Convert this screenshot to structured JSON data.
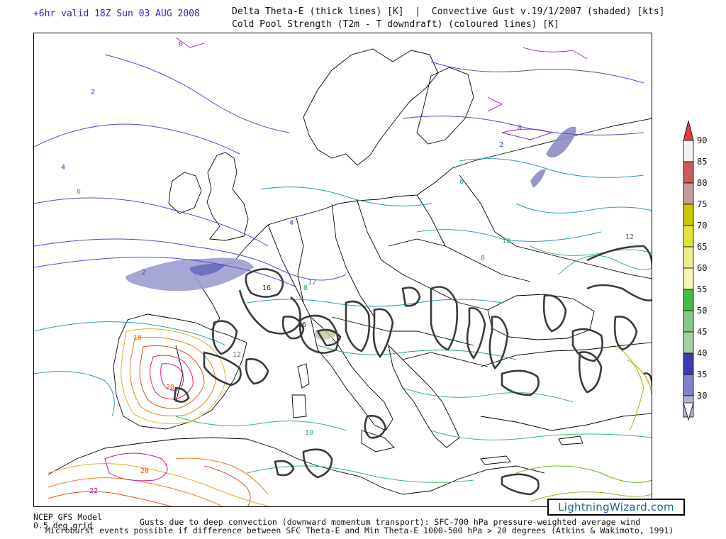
{
  "header": {
    "valid_time": "+6hr valid 18Z Sun 03 AUG 2008",
    "title_line_1": "Delta Theta-E (thick lines) [K]  |  Convective Gust v.19/1/2007 (shaded) [kts]",
    "title_line_2": "Cold Pool Strength (T2m - T downdraft) (coloured lines) [K]"
  },
  "colorbar": {
    "unit": "kts",
    "levels": [
      {
        "label": "90",
        "color": "#f2f2f2"
      },
      {
        "label": "85",
        "color": "#cc5b5b"
      },
      {
        "label": "80",
        "color": "#c79a9a"
      },
      {
        "label": "75",
        "color": "#c8c800"
      },
      {
        "label": "70",
        "color": "#e2e23c"
      },
      {
        "label": "65",
        "color": "#ecec92"
      },
      {
        "label": "60",
        "color": "#f4f4b8"
      },
      {
        "label": "55",
        "color": "#44bb44"
      },
      {
        "label": "50",
        "color": "#88c888"
      },
      {
        "label": "45",
        "color": "#a8d0a8"
      },
      {
        "label": "40",
        "color": "#3c3cb0"
      },
      {
        "label": "35",
        "color": "#8080c8"
      },
      {
        "label": "30",
        "color": "#b4b4d6"
      }
    ],
    "top_triangle_color": "#e83c3c",
    "bottom_triangle_color": "#ffffff"
  },
  "map": {
    "contour_labels": [
      {
        "text": "2"
      },
      {
        "text": "2"
      },
      {
        "text": "2"
      },
      {
        "text": "4"
      },
      {
        "text": "4"
      },
      {
        "text": "6"
      },
      {
        "text": "6"
      },
      {
        "text": "8"
      },
      {
        "text": "8"
      },
      {
        "text": "10"
      },
      {
        "text": "10"
      },
      {
        "text": "12"
      },
      {
        "text": "12"
      },
      {
        "text": "12"
      },
      {
        "text": "16"
      },
      {
        "text": "16"
      },
      {
        "text": "18"
      },
      {
        "text": "20"
      },
      {
        "text": "20"
      },
      {
        "text": "22"
      },
      {
        "text": "0"
      },
      {
        "text": "0"
      }
    ]
  },
  "watermark": "LightningWizard.com",
  "footer": {
    "model_line_1": "NCEP GFS Model",
    "model_line_2": "0.5 deg grid",
    "line_1": "Gusts due to deep convection (downward momentum transport): SFC-700 hPa pressure-weighted average wind",
    "line_2": "Microburst events possible if difference between SFC Theta-E and Min Theta-E 1000-500 hPa > 20 degrees (Atkins & Wakimoto, 1991)"
  }
}
